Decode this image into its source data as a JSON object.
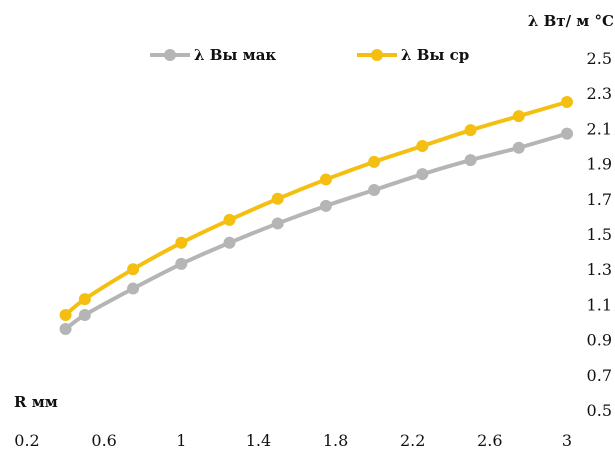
{
  "chart_data": {
    "type": "line",
    "title": "",
    "xlabel": "R мм",
    "ylabel": "λ Вт/ м °C",
    "xlim": [
      0.2,
      3
    ],
    "ylim": [
      0.5,
      2.5
    ],
    "x_ticks": [
      "0.2",
      "0.6",
      "1",
      "1.4",
      "1.8",
      "2.2",
      "2.6",
      "3"
    ],
    "y_ticks": [
      "0.5",
      "0.7",
      "0.9",
      "1.1",
      "1.3",
      "1.5",
      "1.7",
      "1.9",
      "2.1",
      "2.3",
      "2.5"
    ],
    "grid": false,
    "legend_position": "top",
    "series": [
      {
        "name": "λ Вы мак",
        "color": "#b5b5b5",
        "x": [
          0.4,
          0.5,
          0.75,
          1.0,
          1.25,
          1.5,
          1.75,
          2.0,
          2.25,
          2.5,
          2.75,
          3.0
        ],
        "y": [
          0.96,
          1.04,
          1.19,
          1.33,
          1.45,
          1.56,
          1.66,
          1.75,
          1.84,
          1.92,
          1.99,
          2.07
        ]
      },
      {
        "name": "λ Вы ср",
        "color": "#f5bf12",
        "x": [
          0.4,
          0.5,
          0.75,
          1.0,
          1.25,
          1.5,
          1.75,
          2.0,
          2.25,
          2.5,
          2.75,
          3.0
        ],
        "y": [
          1.04,
          1.13,
          1.3,
          1.45,
          1.58,
          1.7,
          1.81,
          1.91,
          2.0,
          2.09,
          2.17,
          2.25
        ]
      }
    ]
  }
}
